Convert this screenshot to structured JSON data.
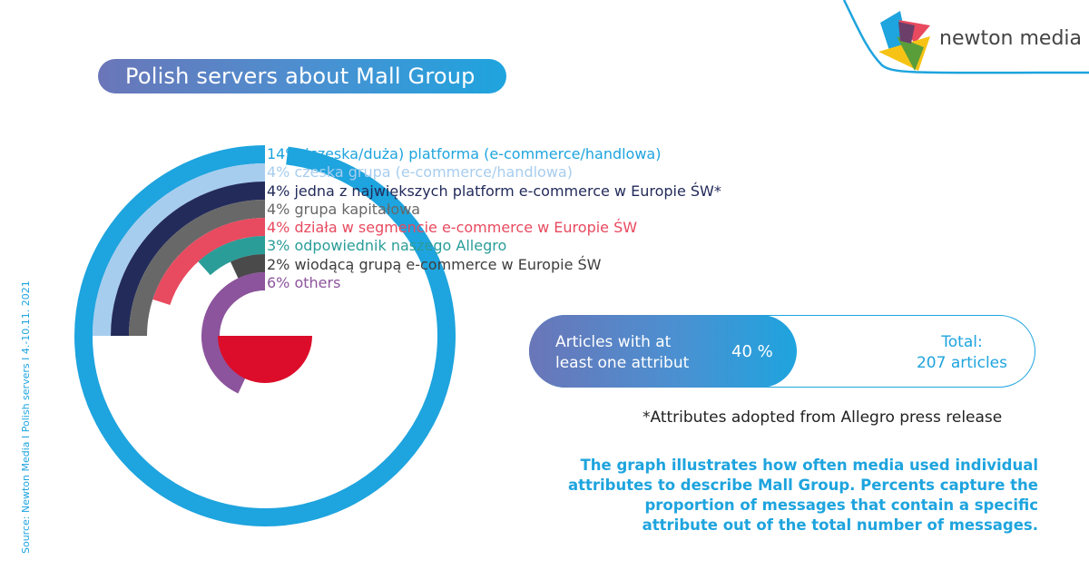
{
  "header": {
    "title": "Polish servers about Mall Group",
    "brand": "newton media"
  },
  "colors": {
    "accent_blue": "#1ea4de",
    "light_blue": "#a7cdee",
    "navy": "#232b5a",
    "grey": "#686868",
    "red": "#e84a5f",
    "teal": "#2a9d98",
    "dark_grey": "#4a4a4a",
    "purple": "#8c549c",
    "flag_red": "#dc0d2a",
    "gradient_start": "#6a76b8"
  },
  "legend": [
    {
      "label": "14% (czeska/duża) platforma (e-commerce/handlowa)",
      "color": "#1ea4de"
    },
    {
      "label": "4% czeska grupa (e-commerce/handlowa)",
      "color": "#a7cdee"
    },
    {
      "label": "4% jedna z największych platform e-commerce w Europie ŚW*",
      "color": "#232b5a"
    },
    {
      "label": "4% grupa kapitałowa",
      "color": "#686868"
    },
    {
      "label": "4% działa w segmencie e-commerce w Europie ŚW",
      "color": "#e84a5f"
    },
    {
      "label": "3% odpowiednik naszego Allegro",
      "color": "#2a9d98"
    },
    {
      "label": "2% wiodącą grupą e-commerce w Europie ŚW",
      "color": "#3d3d3d"
    },
    {
      "label": "6% others",
      "color": "#8c549c"
    }
  ],
  "chart_data": {
    "type": "radial-bar",
    "title": "Polish servers about Mall Group",
    "categories": [
      "(czeska/duża) platforma (e-commerce/handlowa)",
      "czeska grupa (e-commerce/handlowa)",
      "jedna z największych platform e-commerce w Europie ŚW*",
      "grupa kapitałowa",
      "działa w segmencie e-commerce w Europie ŚW",
      "odpowiednik naszego Allegro",
      "wiodącą grupą e-commerce w Europie ŚW",
      "others"
    ],
    "values": [
      14,
      4,
      4,
      4,
      4,
      3,
      2,
      6
    ],
    "unit": "%",
    "sweep_degrees": [
      353,
      90,
      90,
      90,
      72,
      42,
      25,
      155
    ],
    "colors": [
      "#1ea4de",
      "#a7cdee",
      "#232b5a",
      "#686868",
      "#e84a5f",
      "#2a9d98",
      "#4a4a4a",
      "#8c549c"
    ],
    "center": [
      292,
      370
    ],
    "radii": [
      200,
      180,
      160,
      140,
      120,
      100,
      80,
      60
    ],
    "ring_width": 20,
    "legend_position": "right-of-rings-top"
  },
  "stats": {
    "articles_label": "Articles with at least one attribut",
    "articles_label_line1": "Articles with at",
    "articles_label_line2": "least one attribut",
    "articles_percent": "40 %",
    "total_label": "Total:",
    "total_value": "207 articles"
  },
  "footnote": "*Attributes adopted from Allegro press release",
  "description": "The graph illustrates how often media used individual attributes to describe Mall Group. Percents capture the proportion of messages that contain a specific attribute out of the total number of messages.",
  "source": "Source: Newton Media I Polish servers I 4.-10.11. 2021"
}
